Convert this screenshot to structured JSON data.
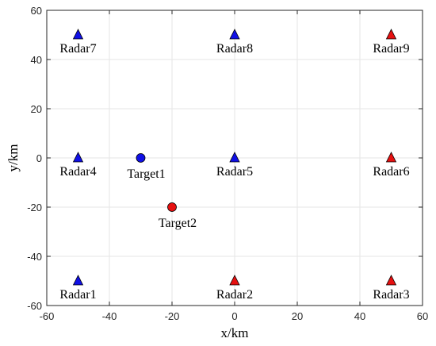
{
  "chart_data": {
    "type": "scatter",
    "title": "",
    "xlabel": "x/km",
    "ylabel": "y/km",
    "xlim": [
      -60,
      60
    ],
    "ylim": [
      -60,
      60
    ],
    "xticks": [
      -60,
      -40,
      -20,
      0,
      20,
      40,
      60
    ],
    "yticks": [
      -60,
      -40,
      -20,
      0,
      20,
      40,
      60
    ],
    "grid": true,
    "legend": "none",
    "radars": [
      {
        "label": "Radar1",
        "x": -50,
        "y": -50,
        "color": "#1010e6"
      },
      {
        "label": "Radar2",
        "x": 0,
        "y": -50,
        "color": "#e61010"
      },
      {
        "label": "Radar3",
        "x": 50,
        "y": -50,
        "color": "#e61010"
      },
      {
        "label": "Radar4",
        "x": -50,
        "y": 0,
        "color": "#1010e6"
      },
      {
        "label": "Radar5",
        "x": 0,
        "y": 0,
        "color": "#1010e6"
      },
      {
        "label": "Radar6",
        "x": 50,
        "y": 0,
        "color": "#e61010"
      },
      {
        "label": "Radar7",
        "x": -50,
        "y": 50,
        "color": "#1010e6"
      },
      {
        "label": "Radar8",
        "x": 0,
        "y": 50,
        "color": "#1010e6"
      },
      {
        "label": "Radar9",
        "x": 50,
        "y": 50,
        "color": "#e61010"
      }
    ],
    "targets": [
      {
        "label": "Target1",
        "x": -30,
        "y": 0,
        "color": "#1010e6"
      },
      {
        "label": "Target2",
        "x": -20,
        "y": -20,
        "color": "#e61010"
      }
    ]
  }
}
